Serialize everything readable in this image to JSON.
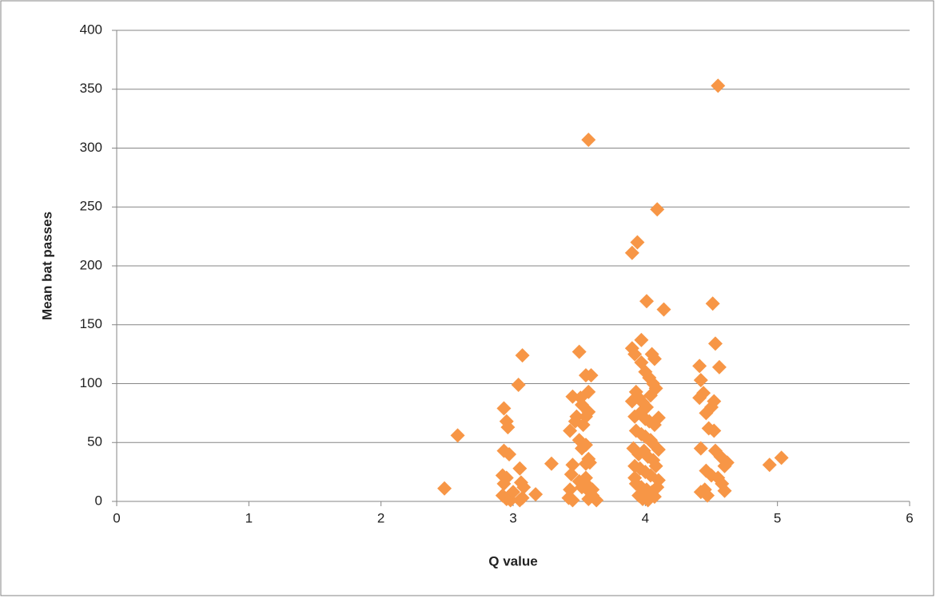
{
  "chart_data": {
    "type": "scatter",
    "x_label": "Q value",
    "y_label": "Mean bat passes",
    "color": "#f79646",
    "xlim": [
      0,
      6
    ],
    "xticks": [
      0,
      1,
      2,
      3,
      4,
      5,
      6
    ],
    "ylim": [
      0,
      400
    ],
    "yticks": [
      0,
      50,
      100,
      150,
      200,
      250,
      300,
      350,
      400
    ],
    "grid": true,
    "x": [
      2.48,
      2.58,
      2.93,
      2.95,
      2.96,
      2.93,
      2.97,
      2.92,
      2.95,
      2.93,
      2.92,
      2.95,
      2.98,
      3.0,
      3.04,
      3.07,
      3.05,
      3.06,
      3.08,
      3.07,
      3.05,
      3.17,
      3.29,
      3.43,
      3.45,
      3.47,
      3.48,
      3.5,
      3.51,
      3.52,
      3.55,
      3.57,
      3.53,
      3.5,
      3.52,
      3.55,
      3.45,
      3.44,
      3.43,
      3.42,
      3.45,
      3.5,
      3.52,
      3.55,
      3.57,
      3.58,
      3.55,
      3.56,
      3.58,
      3.57,
      3.6,
      3.63,
      3.55,
      3.59,
      3.57,
      3.57,
      3.6,
      3.9,
      3.94,
      4.09,
      4.01,
      4.14,
      3.9,
      3.92,
      3.97,
      4.05,
      4.07,
      3.97,
      4.0,
      4.03,
      4.06,
      3.93,
      3.95,
      3.98,
      4.01,
      4.04,
      4.08,
      3.92,
      3.96,
      4.0,
      4.03,
      4.07,
      4.1,
      3.93,
      3.97,
      4.0,
      4.04,
      3.91,
      3.95,
      3.99,
      4.02,
      4.06,
      4.1,
      3.92,
      3.96,
      4.0,
      4.04,
      4.08,
      3.93,
      3.97,
      4.01,
      4.05,
      4.09,
      3.95,
      3.98,
      4.02,
      4.07,
      3.9,
      3.92,
      4.05,
      4.1,
      4.41,
      4.42,
      4.41,
      4.44,
      4.46,
      4.48,
      4.5,
      4.52,
      4.51,
      4.53,
      4.56,
      4.55,
      4.42,
      4.46,
      4.5,
      4.45,
      4.47,
      4.42,
      4.53,
      4.57,
      4.6,
      4.62,
      4.55,
      4.58,
      4.6,
      4.52,
      4.94,
      5.03
    ],
    "values": [
      11,
      56,
      79,
      68,
      63,
      43,
      40,
      22,
      20,
      15,
      5,
      2,
      1,
      8,
      99,
      124,
      28,
      16,
      12,
      3,
      1,
      6,
      32,
      60,
      89,
      68,
      72,
      127,
      88,
      82,
      72,
      76,
      65,
      52,
      45,
      48,
      31,
      23,
      10,
      3,
      1,
      17,
      12,
      32,
      36,
      33,
      20,
      14,
      8,
      2,
      10,
      1,
      107,
      107,
      93,
      307,
      5,
      211,
      220,
      248,
      170,
      163,
      130,
      125,
      137,
      125,
      121,
      118,
      110,
      105,
      100,
      93,
      88,
      84,
      80,
      90,
      96,
      72,
      75,
      70,
      68,
      65,
      71,
      60,
      57,
      55,
      52,
      45,
      40,
      43,
      38,
      35,
      44,
      30,
      28,
      25,
      22,
      30,
      15,
      12,
      10,
      8,
      12,
      5,
      2,
      1,
      4,
      85,
      20,
      50,
      18,
      115,
      103,
      88,
      92,
      75,
      62,
      80,
      85,
      168,
      134,
      114,
      353,
      45,
      26,
      22,
      10,
      5,
      8,
      43,
      38,
      30,
      33,
      20,
      15,
      9,
      60,
      31,
      37
    ]
  }
}
